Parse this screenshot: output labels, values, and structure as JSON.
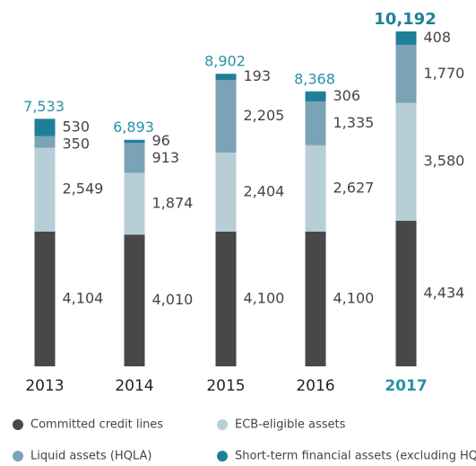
{
  "chart_data": {
    "type": "stacked-bar",
    "categories": [
      "2013",
      "2014",
      "2015",
      "2016",
      "2017"
    ],
    "series": [
      {
        "name": "Committed credit lines",
        "color": "#484848",
        "values": [
          4104,
          4010,
          4100,
          4100,
          4434
        ],
        "value_labels": [
          "4,104",
          "4,010",
          "4,100",
          "4,100",
          "4,434"
        ]
      },
      {
        "name": "ECB-eligible assets",
        "color": "#b8ced7",
        "values": [
          2549,
          1874,
          2404,
          2627,
          3580
        ],
        "value_labels": [
          "2,549",
          "1,874",
          "2,404",
          "2,627",
          "3,580"
        ]
      },
      {
        "name": "Liquid assets (HQLA)",
        "color": "#7ba3b6",
        "values": [
          350,
          913,
          2205,
          1335,
          1770
        ],
        "value_labels": [
          "350",
          "913",
          "2,205",
          "1,335",
          "1,770"
        ]
      },
      {
        "name": "Short-term financial assets (excluding HQLA)",
        "color": "#1f7f96",
        "values": [
          530,
          96,
          193,
          306,
          408
        ],
        "value_labels": [
          "530",
          "96",
          "193",
          "306",
          "408"
        ]
      }
    ],
    "totals": [
      7533,
      6893,
      8902,
      8368,
      10192
    ],
    "totals_labels": [
      "7,533",
      "6,893",
      "8,902",
      "8,368",
      "10,192"
    ],
    "total_color": "#2a90a8",
    "highlight": "2017"
  }
}
